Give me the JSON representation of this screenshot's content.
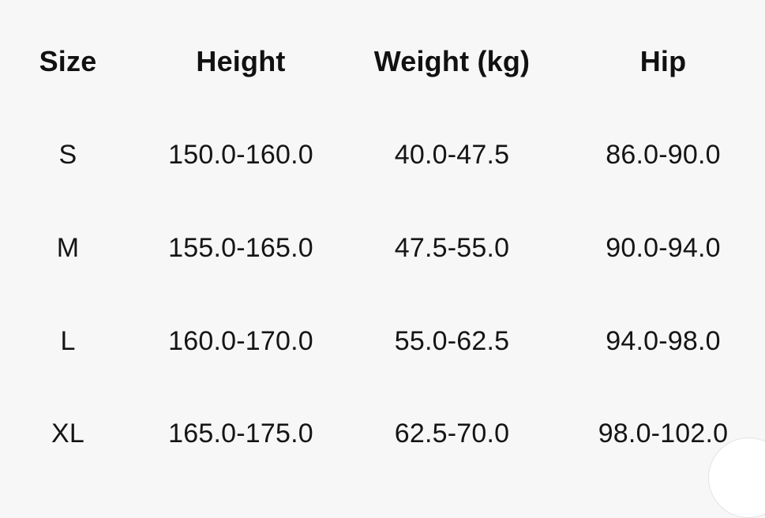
{
  "table": {
    "headers": [
      "Size",
      "Height",
      "Weight (kg)",
      "Hip"
    ],
    "rows": [
      [
        "S",
        "150.0-160.0",
        "40.0-47.5",
        "86.0-90.0"
      ],
      [
        "M",
        "155.0-165.0",
        "47.5-55.0",
        "90.0-94.0"
      ],
      [
        "L",
        "160.0-170.0",
        "55.0-62.5",
        "94.0-98.0"
      ],
      [
        "XL",
        "165.0-175.0",
        "62.5-70.0",
        "98.0-102.0"
      ]
    ]
  }
}
